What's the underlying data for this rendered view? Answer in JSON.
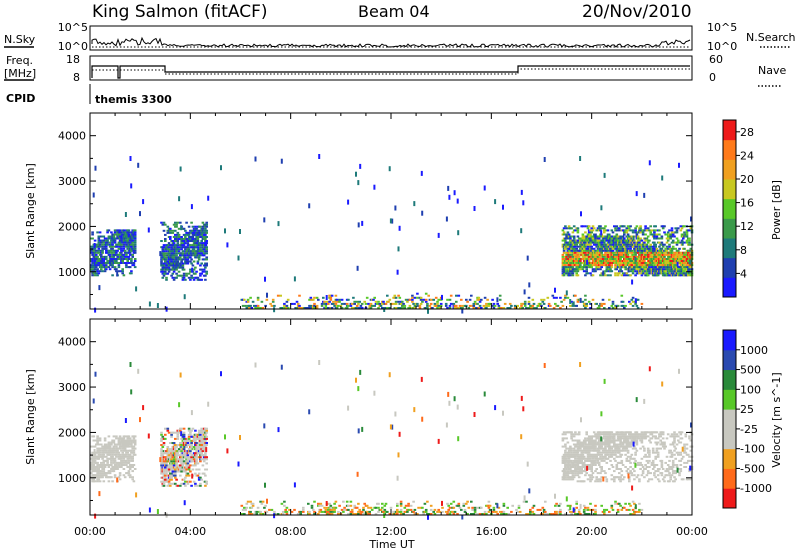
{
  "header": {
    "station": "King Salmon (fitACF)",
    "beam": "Beam 04",
    "date": "20/Nov/2010"
  },
  "strips": {
    "nsky_label": "N.Sky",
    "nsearch_label": "N.Search",
    "nsky_ticks": [
      "10^5",
      "10^0"
    ],
    "nsearch_ticks": [
      "10^5",
      "10^0"
    ],
    "freq_label_1": "Freq.",
    "freq_label_2": "[MHz]",
    "freq_ticks": [
      "18",
      "8"
    ],
    "nave_label": "Nave",
    "nave_ticks": [
      "60",
      "0"
    ],
    "cpid_label": "CPID",
    "cpid_value": "themis 3300"
  },
  "colors": {
    "power_scale": [
      "#1a1aff",
      "#1f3fb0",
      "#1e7a7a",
      "#3a9a4a",
      "#58c828",
      "#c8c820",
      "#f0a020",
      "#ff7a1a",
      "#ee1a1a"
    ],
    "velocity_scale": [
      "#ee1a1a",
      "#ff6a1a",
      "#f0a020",
      "#c8c8c0",
      "#c8c8c0",
      "#58c828",
      "#2a8a3a",
      "#2a4ab0",
      "#1a1aff"
    ],
    "ground_scatter": "#c8c8c0"
  },
  "chart_data": [
    {
      "type": "heatmap",
      "title": "Power",
      "ylabel": "Slant Range [km]",
      "xlabel": "",
      "x_ticks": [
        "00:00",
        "04:00",
        "08:00",
        "12:00",
        "16:00",
        "20:00",
        "00:00"
      ],
      "y_ticks": [
        1000,
        2000,
        3000,
        4000
      ],
      "xlim_hours": [
        0,
        24
      ],
      "ylim_km": [
        180,
        4500
      ],
      "colorbar": {
        "label": "Power [dB]",
        "ticks": [
          4,
          8,
          12,
          16,
          20,
          24,
          28
        ],
        "range": [
          0,
          30
        ]
      },
      "echo_regions": [
        {
          "t0": 0.0,
          "t1": 1.8,
          "r0": 900,
          "r1": 1900,
          "level": "mixed-weak",
          "note": ""
        },
        {
          "t0": 2.8,
          "t1": 4.6,
          "r0": 800,
          "r1": 2100,
          "level": "mixed",
          "note": ""
        },
        {
          "t0": 18.8,
          "t1": 24.0,
          "r0": 900,
          "r1": 2000,
          "level": "strong",
          "note": ""
        },
        {
          "t0": 6.0,
          "t1": 22.0,
          "r0": 180,
          "r1": 500,
          "level": "near-range",
          "note": ""
        }
      ]
    },
    {
      "type": "heatmap",
      "title": "Velocity",
      "ylabel": "Slant Range [km]",
      "xlabel": "Time UT",
      "x_ticks": [
        "00:00",
        "04:00",
        "08:00",
        "12:00",
        "16:00",
        "20:00",
        "00:00"
      ],
      "y_ticks": [
        1000,
        2000,
        3000,
        4000
      ],
      "xlim_hours": [
        0,
        24
      ],
      "ylim_km": [
        180,
        4500
      ],
      "colorbar": {
        "label": "Velocity [m s^-1]",
        "ticks": [
          1000,
          500,
          100,
          25,
          -25,
          -100,
          -500,
          -1000
        ]
      },
      "echo_regions": [
        {
          "t0": 0.0,
          "t1": 1.8,
          "r0": 900,
          "r1": 1900,
          "level": "ground-scatter"
        },
        {
          "t0": 2.8,
          "t1": 4.6,
          "r0": 800,
          "r1": 2100,
          "level": "mixed"
        },
        {
          "t0": 18.8,
          "t1": 24.0,
          "r0": 900,
          "r1": 2000,
          "level": "ground-scatter"
        },
        {
          "t0": 6.0,
          "t1": 22.0,
          "r0": 180,
          "r1": 500,
          "level": "near-range"
        }
      ]
    }
  ]
}
